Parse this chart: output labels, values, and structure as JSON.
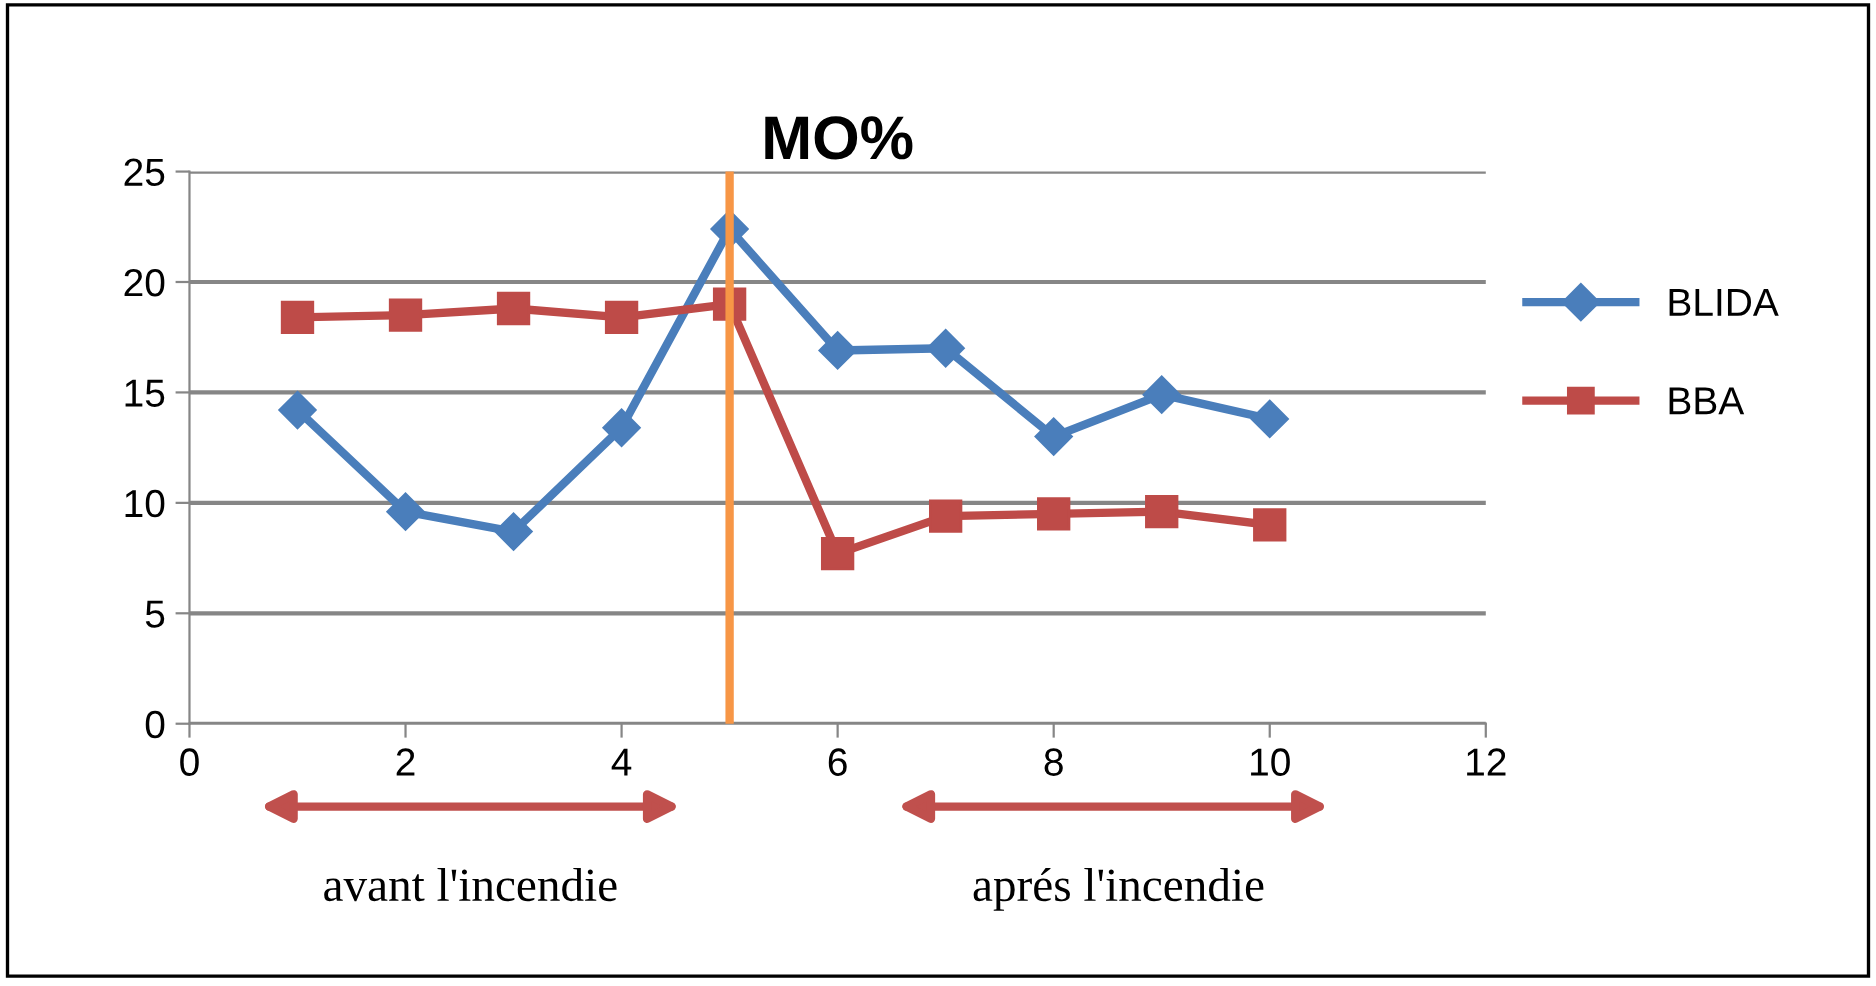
{
  "chart_data": {
    "type": "line",
    "title": "MO%",
    "x": [
      1,
      2,
      3,
      4,
      5,
      6,
      7,
      8,
      9,
      10
    ],
    "series": [
      {
        "name": "BLIDA",
        "color": "#4a7ebb",
        "marker": "diamond",
        "values": [
          14.2,
          9.6,
          8.7,
          13.4,
          22.4,
          16.9,
          17.0,
          13.0,
          14.9,
          13.8
        ]
      },
      {
        "name": "BBA",
        "color": "#be4b48",
        "marker": "square",
        "values": [
          18.4,
          18.5,
          18.8,
          18.4,
          19.0,
          7.7,
          9.4,
          9.5,
          9.6,
          9.0
        ]
      }
    ],
    "xlim": [
      0,
      12
    ],
    "xticks": [
      0,
      2,
      4,
      6,
      8,
      10,
      12
    ],
    "ylim": [
      0,
      25
    ],
    "yticks": [
      0,
      5,
      10,
      15,
      20,
      25
    ],
    "grid": "y",
    "legend": "right",
    "line_style": "solid",
    "ref_lines": [
      {
        "axis": "x",
        "value": 5,
        "color": "#f79646"
      }
    ],
    "annotations": [
      "avant l'incendie",
      "aprés l'incendie"
    ]
  }
}
